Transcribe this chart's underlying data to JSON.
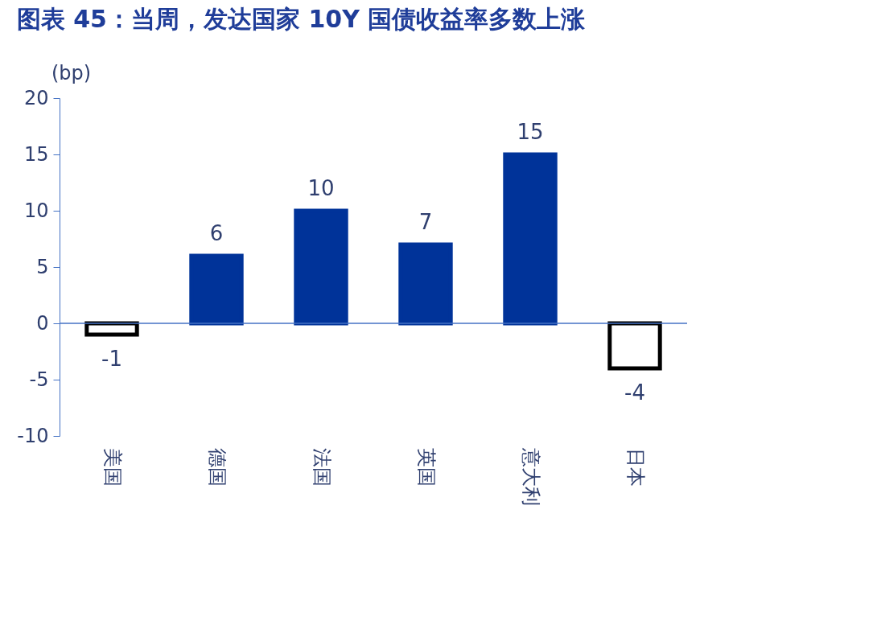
{
  "chart_data": {
    "type": "bar",
    "title": "图表 45：当周，发达国家 10Y 国债收益率多数上涨",
    "ylabel": "(bp)",
    "categories": [
      "美国",
      "德国",
      "法国",
      "英国",
      "意大利",
      "日本"
    ],
    "values": [
      -1,
      6,
      10,
      7,
      15,
      -4
    ],
    "colors": [
      "#ffffff",
      "#003399",
      "#003399",
      "#003399",
      "#003399",
      "#ffffff"
    ],
    "ylim": [
      -10,
      20
    ],
    "yticks": [
      -10,
      -5,
      0,
      5,
      10,
      15,
      20
    ],
    "ref_lines": [
      {
        "axis": "y",
        "value": 0,
        "color": "#4472c4"
      }
    ],
    "data_labels": true,
    "grid": false
  }
}
